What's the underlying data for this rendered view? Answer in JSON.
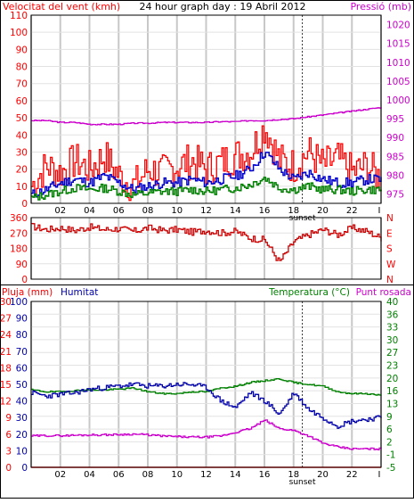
{
  "colors": {
    "wind": "#ff0000",
    "gust": "#0000cc",
    "windlow": "#008000",
    "pressure": "#cc00cc",
    "direction": "#cc0000",
    "humidity": "#0000aa",
    "temperature": "#008000",
    "dewpoint": "#cc00cc",
    "rain": "#ff0000",
    "grid": "#c8c8c8",
    "sunset": "#333333"
  },
  "chart_data": [
    {
      "type": "line",
      "title": "24 hour graph day : 19 Abril 2012",
      "left_axis_label": "Velocitat del vent (kmh)",
      "right_axis_label": "Pressió (mb)",
      "x_ticks": [
        "02",
        "04",
        "06",
        "08",
        "10",
        "12",
        "14",
        "16",
        "18",
        "20",
        "22"
      ],
      "x_end_tick": "I",
      "sunset_label": "sunset",
      "sunset_hour": 18.6,
      "ylim_left": [
        0,
        110
      ],
      "yticks_left": [
        "0",
        "10",
        "20",
        "30",
        "40",
        "50",
        "60",
        "70",
        "80",
        "90",
        "100",
        "110"
      ],
      "ylim_right": [
        972.5,
        1022.5
      ],
      "yticks_right": [
        "975",
        "980",
        "985",
        "990",
        "995",
        "1000",
        "1005",
        "1010",
        "1015",
        "1020"
      ],
      "hours": [
        0,
        1,
        2,
        3,
        4,
        5,
        6,
        7,
        8,
        9,
        10,
        11,
        12,
        13,
        14,
        15,
        16,
        17,
        18,
        19,
        20,
        21,
        22,
        23,
        24
      ],
      "series": [
        {
          "key": "wind",
          "axis": "left",
          "values": [
            10,
            22,
            18,
            25,
            20,
            28,
            16,
            10,
            20,
            18,
            22,
            25,
            20,
            24,
            28,
            30,
            45,
            25,
            22,
            30,
            22,
            26,
            18,
            22,
            14
          ]
        },
        {
          "key": "gust",
          "axis": "left",
          "values": [
            5,
            8,
            12,
            14,
            12,
            16,
            12,
            8,
            10,
            12,
            12,
            14,
            12,
            14,
            16,
            20,
            30,
            20,
            14,
            18,
            14,
            12,
            12,
            14,
            14
          ]
        },
        {
          "key": "windlow",
          "axis": "left",
          "values": [
            3,
            5,
            7,
            9,
            8,
            9,
            7,
            5,
            6,
            7,
            7,
            8,
            7,
            8,
            9,
            11,
            15,
            9,
            8,
            10,
            8,
            8,
            7,
            8,
            8
          ]
        },
        {
          "key": "pressure",
          "axis": "right",
          "values": [
            994.5,
            994.5,
            994,
            994,
            993.5,
            993.5,
            993.5,
            993.8,
            993.8,
            994,
            994,
            994,
            994,
            994.2,
            994.2,
            994.5,
            994.5,
            994.8,
            995,
            995.5,
            996,
            996.5,
            997,
            997.5,
            998
          ]
        }
      ]
    },
    {
      "type": "line",
      "ylim": [
        0,
        360
      ],
      "yticks_left": [
        "0",
        "90",
        "180",
        "270",
        "360"
      ],
      "yticks_right": [
        "N",
        "W",
        "S",
        "E",
        "N"
      ],
      "x_end_tick": "I",
      "hours": [
        0,
        1,
        2,
        3,
        4,
        5,
        6,
        7,
        8,
        9,
        10,
        11,
        12,
        13,
        14,
        15,
        16,
        17,
        18,
        19,
        20,
        21,
        22,
        23,
        24
      ],
      "series": [
        {
          "key": "direction",
          "values": [
            310,
            290,
            300,
            285,
            305,
            290,
            295,
            280,
            300,
            285,
            290,
            275,
            285,
            270,
            280,
            240,
            230,
            100,
            220,
            260,
            290,
            260,
            300,
            280,
            240
          ]
        }
      ]
    },
    {
      "type": "line",
      "rain_axis_label": "Pluja (mm)",
      "humidity_axis_label": "Humitat",
      "right_axis_label": "Temperatura (°C)",
      "dewpoint_label": "Punt rosada",
      "x_ticks": [
        "02",
        "04",
        "06",
        "08",
        "10",
        "12",
        "14",
        "16",
        "18",
        "20",
        "22"
      ],
      "x_end_tick": "I",
      "sunset_label": "sunset",
      "sunset_hour": 18.6,
      "yticks_rain": [
        "0",
        "3",
        "6",
        "9",
        "12",
        "15",
        "18",
        "21",
        "24",
        "27",
        "30"
      ],
      "yticks_humidity": [
        "0",
        "10",
        "20",
        "30",
        "40",
        "50",
        "60",
        "70",
        "80",
        "90",
        "100"
      ],
      "ylim_right": [
        -5,
        40
      ],
      "yticks_right": [
        "-5",
        "-1",
        "2",
        "6",
        "9",
        "13",
        "16",
        "20",
        "23",
        "27",
        "30",
        "33",
        "36",
        "40"
      ],
      "hours": [
        0,
        1,
        2,
        3,
        4,
        5,
        6,
        7,
        8,
        9,
        10,
        11,
        12,
        13,
        14,
        15,
        16,
        17,
        18,
        19,
        20,
        21,
        22,
        23,
        24
      ],
      "series": [
        {
          "key": "humidity",
          "axis": "humidity",
          "values": [
            45,
            43,
            44,
            45,
            47,
            48,
            49,
            50,
            49,
            49,
            50,
            50,
            48,
            40,
            36,
            45,
            40,
            32,
            45,
            35,
            30,
            25,
            28,
            29,
            30
          ]
        },
        {
          "key": "temperature",
          "axis": "temperature",
          "values": [
            16,
            15.5,
            15.5,
            15.8,
            16,
            16,
            16.2,
            16.5,
            15.5,
            15,
            15,
            15.5,
            15.5,
            16.5,
            17,
            18,
            18.5,
            19,
            18,
            17.5,
            17,
            15.5,
            15,
            15,
            14.5
          ]
        },
        {
          "key": "dewpoint",
          "axis": "temperature",
          "values": [
            3.5,
            3.6,
            3.6,
            3.7,
            3.8,
            3.8,
            3.9,
            4,
            3.8,
            3.5,
            3.3,
            3.2,
            3.2,
            3.5,
            4.5,
            5.5,
            7.8,
            5.5,
            5,
            3.5,
            1.5,
            0.5,
            0,
            0,
            0
          ]
        },
        {
          "key": "rain",
          "axis": "rain",
          "values": [
            0,
            0,
            0,
            0,
            0,
            0,
            0,
            0,
            0,
            0,
            0,
            0,
            0,
            0,
            0,
            0,
            0,
            0,
            0,
            0,
            0,
            0,
            0,
            0,
            0
          ]
        }
      ]
    }
  ]
}
